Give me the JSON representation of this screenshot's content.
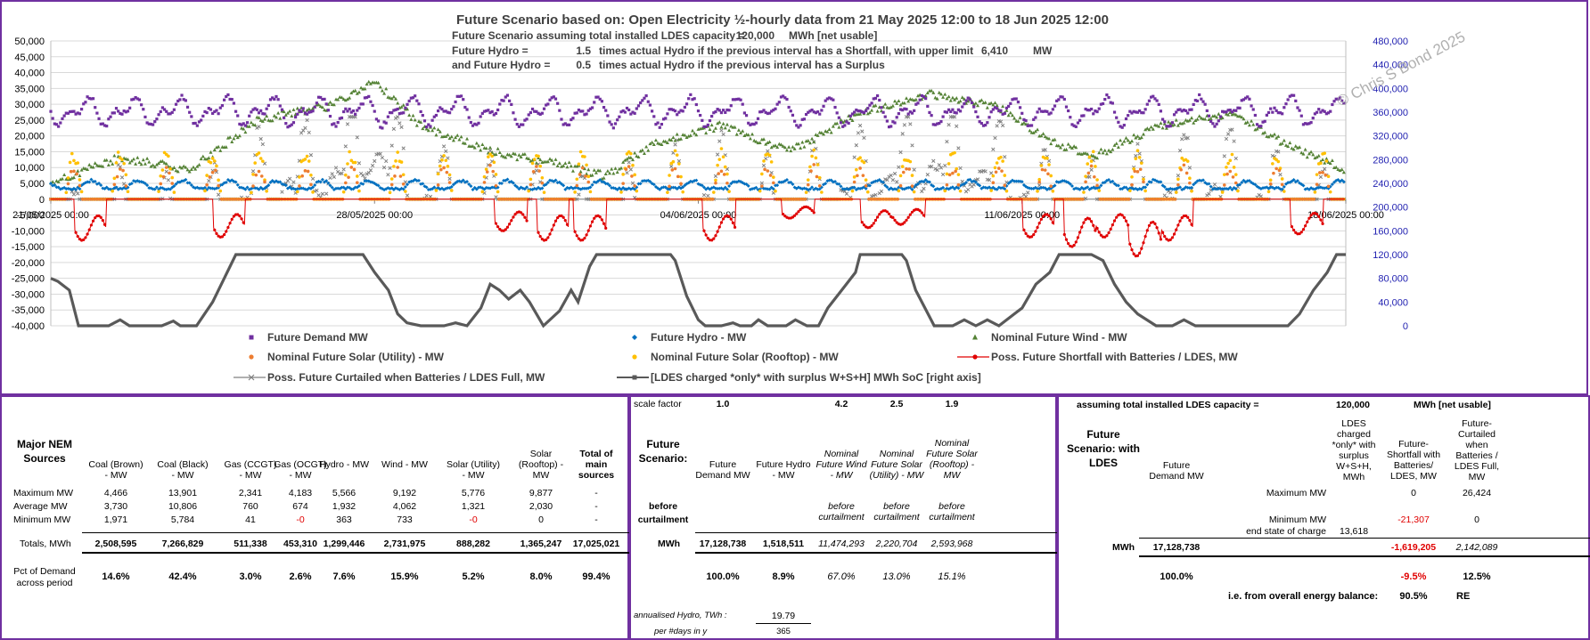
{
  "chart_data": {
    "type": "line",
    "title": "Future Scenario based on:  Open Electricity ½-hourly data from 21 May 2025 12:00  to 18 Jun 2025 12:00",
    "subtitle_lines": [
      {
        "label": "Future Scenario assuming total installed LDES capacity =",
        "value": "120,000",
        "unit": "MWh [net usable]"
      },
      {
        "label": "Future Hydro =",
        "value": "1.5",
        "text": "times actual Hydro if the previous interval has a Shortfall, with upper limit",
        "limit": "6,410",
        "unit": "MW"
      },
      {
        "label": "and Future Hydro =",
        "value": "0.5",
        "text": "times actual Hydro if the previous interval has a Surplus"
      }
    ],
    "watermark": "© Chris S Bond  2025",
    "y_left": {
      "min": -40000,
      "max": 50000,
      "ticks": [
        "50,000",
        "45,000",
        "40,000",
        "35,000",
        "30,000",
        "25,000",
        "20,000",
        "15,000",
        "10,000",
        "5,000",
        "0",
        "-5,000",
        "-10,000",
        "-15,000",
        "-20,000",
        "-25,000",
        "-30,000",
        "-35,000",
        "-40,000"
      ]
    },
    "y_right": {
      "min": 0,
      "max": 480000,
      "ticks": [
        "480,000",
        "440,000",
        "400,000",
        "360,000",
        "320,000",
        "280,000",
        "240,000",
        "200,000",
        "160,000",
        "120,000",
        "80,000",
        "40,000",
        "0"
      ]
    },
    "x_range_days": [
      0,
      28
    ],
    "x_ticks": [
      {
        "day": 0,
        "label": "21/05/2025 00:00"
      },
      {
        "day": 7,
        "label": "28/05/2025 00:00"
      },
      {
        "day": 14,
        "label": "04/06/2025 00:00"
      },
      {
        "day": 21,
        "label": "11/06/2025 00:00"
      },
      {
        "day": 28,
        "label": "18/06/2025 00:00"
      }
    ],
    "series_colors": {
      "demand": "#7030a0",
      "hydro": "#0070c0",
      "wind": "#548235",
      "solar_utility": "#ed7d31",
      "solar_rooftop": "#ffc000",
      "shortfall": "#e00000",
      "curtailed": "#808080",
      "soc": "#595959"
    },
    "soc_points": [
      [
        0,
        80
      ],
      [
        0.3,
        75
      ],
      [
        0.8,
        60
      ],
      [
        1.2,
        0
      ],
      [
        2.5,
        0
      ],
      [
        3.0,
        10
      ],
      [
        3.4,
        0
      ],
      [
        4.8,
        0
      ],
      [
        5.3,
        8
      ],
      [
        5.6,
        0
      ],
      [
        6.3,
        0
      ],
      [
        7.0,
        40
      ],
      [
        7.5,
        80
      ],
      [
        8.0,
        120
      ],
      [
        10.0,
        120
      ],
      [
        13.0,
        120
      ],
      [
        13.5,
        120
      ],
      [
        14.0,
        90
      ],
      [
        14.6,
        60
      ],
      [
        15.0,
        20
      ],
      [
        15.4,
        5
      ],
      [
        16.0,
        0
      ],
      [
        17.0,
        0
      ],
      [
        17.5,
        5
      ],
      [
        18.0,
        0
      ],
      [
        18.6,
        30
      ],
      [
        19.0,
        70
      ],
      [
        19.4,
        60
      ],
      [
        19.8,
        45
      ],
      [
        20.3,
        60
      ],
      [
        20.7,
        40
      ],
      [
        21.3,
        0
      ],
      [
        22.0,
        25
      ],
      [
        22.5,
        60
      ],
      [
        22.8,
        40
      ],
      [
        23.3,
        100
      ],
      [
        23.6,
        120
      ],
      [
        26.8,
        120
      ],
      [
        27.0,
        110
      ],
      [
        27.5,
        50
      ],
      [
        28.0,
        10
      ],
      [
        28.3,
        0
      ],
      [
        29.0,
        0
      ],
      [
        29.5,
        5
      ],
      [
        29.8,
        0
      ],
      [
        30.3,
        0
      ],
      [
        30.6,
        10
      ],
      [
        31.0,
        0
      ],
      [
        31.8,
        0
      ],
      [
        32.2,
        10
      ],
      [
        32.7,
        0
      ],
      [
        33.2,
        0
      ],
      [
        33.6,
        30
      ],
      [
        34.2,
        60
      ],
      [
        34.8,
        90
      ],
      [
        35.0,
        120
      ],
      [
        36.8,
        120
      ],
      [
        37.0,
        110
      ],
      [
        37.4,
        60
      ],
      [
        37.8,
        30
      ],
      [
        38.2,
        0
      ],
      [
        39.0,
        0
      ],
      [
        39.5,
        10
      ],
      [
        40.0,
        0
      ],
      [
        40.5,
        10
      ],
      [
        41.0,
        0
      ],
      [
        42.0,
        30
      ],
      [
        42.6,
        70
      ],
      [
        43.2,
        90
      ],
      [
        43.6,
        120
      ],
      [
        44.0,
        120
      ],
      [
        45.0,
        120
      ],
      [
        45.5,
        110
      ],
      [
        46.0,
        70
      ],
      [
        46.5,
        40
      ],
      [
        47.0,
        20
      ],
      [
        47.8,
        0
      ],
      [
        48.5,
        0
      ],
      [
        49.0,
        10
      ],
      [
        49.5,
        0
      ],
      [
        50.5,
        0
      ],
      [
        51.5,
        0
      ],
      [
        52.5,
        0
      ],
      [
        53.5,
        0
      ],
      [
        54.0,
        20
      ],
      [
        54.6,
        60
      ],
      [
        55.2,
        90
      ],
      [
        55.6,
        120
      ],
      [
        56.0,
        120
      ]
    ],
    "legend": [
      {
        "key": "demand",
        "label": "Future Demand MW"
      },
      {
        "key": "hydro",
        "label": "Future Hydro -  MW"
      },
      {
        "key": "wind",
        "label": "Nominal Future Wind -  MW"
      },
      {
        "key": "solar_utility",
        "label": "Nominal Future Solar (Utility) -  MW"
      },
      {
        "key": "solar_rooftop",
        "label": "Nominal Future Solar (Rooftop) -  MW"
      },
      {
        "key": "shortfall",
        "label": "Poss. Future Shortfall with Batteries / LDES, MW"
      },
      {
        "key": "curtailed",
        "label": "Poss. Future Curtailed when Batteries / LDES Full, MW"
      },
      {
        "key": "soc",
        "label": "[LDES charged *only* with surplus W+S+H]  MWh SoC [right axis]"
      }
    ],
    "grid": true,
    "legend_placement": "bottom"
  },
  "table_left": {
    "title_line1": "Major NEM",
    "title_line2": "Sources",
    "columns": [
      "Coal (Brown) - MW",
      "Coal (Black) - MW",
      "Gas (CCGT) - MW",
      "Gas (OCGT) - MW",
      "Hydro - MW",
      "Wind - MW",
      "Solar (Utility) - MW",
      "Solar (Rooftop) - MW",
      "Total of main sources"
    ],
    "rows": [
      {
        "label": "Maximum MW",
        "values": [
          "4,466",
          "13,901",
          "2,341",
          "4,183",
          "5,566",
          "9,192",
          "5,776",
          "9,877",
          "-"
        ]
      },
      {
        "label": "Average MW",
        "values": [
          "3,730",
          "10,806",
          "760",
          "674",
          "1,932",
          "4,062",
          "1,321",
          "2,030",
          "-"
        ]
      },
      {
        "label": "Minimum MW",
        "values": [
          "1,971",
          "5,784",
          "41",
          "-0",
          "363",
          "733",
          "-0",
          "0",
          "-"
        ]
      }
    ],
    "totals_label": "Totals, MWh",
    "totals": [
      "2,508,595",
      "7,266,829",
      "511,338",
      "453,310",
      "1,299,446",
      "2,731,975",
      "888,282",
      "1,365,247",
      "17,025,021"
    ],
    "pct_label_1": "Pct of Demand",
    "pct_label_2": "across period",
    "pct": [
      "14.6%",
      "42.4%",
      "3.0%",
      "2.6%",
      "7.6%",
      "15.9%",
      "5.2%",
      "8.0%",
      "99.4%"
    ]
  },
  "table_mid": {
    "scale_label": "scale factor",
    "scale_values": [
      "1.0",
      "4.2",
      "2.5",
      "1.9"
    ],
    "title_line1": "Future",
    "title_line2": "Scenario:",
    "columns": [
      "Future Demand MW",
      "Future Hydro - MW",
      "Nominal Future Wind - MW",
      "Nominal Future Solar (Utility) - MW",
      "Nominal Future Solar (Rooftop) - MW"
    ],
    "before_1": "before",
    "before_2": "curtailment",
    "before_cells": [
      "before curtailment",
      "before curtailment",
      "before curtailment"
    ],
    "mwh_label": "MWh",
    "totals": [
      "17,128,738",
      "1,518,511",
      "11,474,293",
      "2,220,704",
      "2,593,968"
    ],
    "pct": [
      "100.0%",
      "8.9%",
      "67.0%",
      "13.0%",
      "15.1%"
    ],
    "annualised_label": "annualised Hydro, TWh :",
    "annualised_value": "19.79",
    "days_label": "per #days in y",
    "days_value": "365"
  },
  "table_right": {
    "capacity_label": "assuming total installed LDES capacity =",
    "capacity_value": "120,000",
    "capacity_unit": "MWh [net usable]",
    "title_lines": [
      "Future",
      "Scenario: with",
      "LDES"
    ],
    "col_demand": "Future Demand MW",
    "col_ldes": "LDES charged *only* with surplus W+S+H, MWh",
    "col_shortfall": "Future- Shortfall with Batteries/ LDES, MW",
    "col_curtailed": "Future- Curtailed when Batteries / LDES Full, MW",
    "max_label": "Maximum MW",
    "max_shortfall": "0",
    "max_curtailed": "26,424",
    "min_label": "Minimum MW",
    "min_shortfall": "-21,307",
    "min_curtailed": "0",
    "end_label": "end state of charge",
    "end_value": "13,618",
    "mwh_label": "MWh",
    "total_demand": "17,128,738",
    "total_shortfall": "-1,619,205",
    "total_curtailed": "2,142,089",
    "pct_demand": "100.0%",
    "pct_shortfall": "-9.5%",
    "pct_curtailed": "12.5%",
    "balance_label": "i.e. from overall energy balance:",
    "balance_value": "90.5%",
    "balance_unit": "RE"
  }
}
